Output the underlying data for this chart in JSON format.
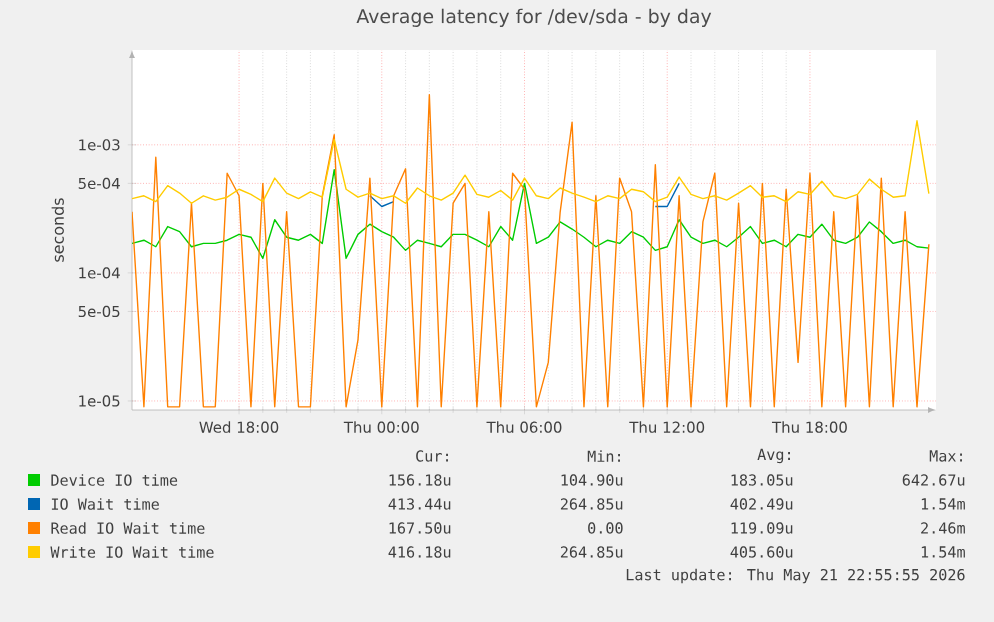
{
  "chart_data": {
    "type": "line",
    "title": "Average latency for /dev/sda - by day",
    "ylabel": "seconds",
    "log": "y",
    "grid": true,
    "legend": "bottom",
    "xlim": [
      "2026-05-20T13:30",
      "2026-05-21T23:18"
    ],
    "ylim": [
      8.5e-06,
      0.0055
    ],
    "xticks": [
      {
        "value": "2026-05-20T18:00",
        "label": "Wed 18:00"
      },
      {
        "value": "2026-05-21T00:00",
        "label": "Thu 00:00"
      },
      {
        "value": "2026-05-21T06:00",
        "label": "Thu 06:00"
      },
      {
        "value": "2026-05-21T12:00",
        "label": "Thu 12:00"
      },
      {
        "value": "2026-05-21T18:00",
        "label": "Thu 18:00"
      }
    ],
    "yticks": [
      {
        "value": 1e-05,
        "label": "1e-05"
      },
      {
        "value": 5e-05,
        "label": "5e-05"
      },
      {
        "value": 0.0001,
        "label": "1e-04"
      },
      {
        "value": 0.0005,
        "label": "5e-04"
      },
      {
        "value": 0.001,
        "label": "1e-03"
      }
    ],
    "x": [
      "2026-05-20T13:30",
      "2026-05-20T14:00",
      "2026-05-20T14:30",
      "2026-05-20T15:00",
      "2026-05-20T15:30",
      "2026-05-20T16:00",
      "2026-05-20T16:30",
      "2026-05-20T17:00",
      "2026-05-20T17:30",
      "2026-05-20T18:00",
      "2026-05-20T18:30",
      "2026-05-20T19:00",
      "2026-05-20T19:30",
      "2026-05-20T20:00",
      "2026-05-20T20:30",
      "2026-05-20T21:00",
      "2026-05-20T21:30",
      "2026-05-20T22:00",
      "2026-05-20T22:30",
      "2026-05-20T23:00",
      "2026-05-20T23:30",
      "2026-05-21T00:00",
      "2026-05-21T00:30",
      "2026-05-21T01:00",
      "2026-05-21T01:30",
      "2026-05-21T02:00",
      "2026-05-21T02:30",
      "2026-05-21T03:00",
      "2026-05-21T03:30",
      "2026-05-21T04:00",
      "2026-05-21T04:30",
      "2026-05-21T05:00",
      "2026-05-21T05:30",
      "2026-05-21T06:00",
      "2026-05-21T06:30",
      "2026-05-21T07:00",
      "2026-05-21T07:30",
      "2026-05-21T08:00",
      "2026-05-21T08:30",
      "2026-05-21T09:00",
      "2026-05-21T09:30",
      "2026-05-21T10:00",
      "2026-05-21T10:30",
      "2026-05-21T11:00",
      "2026-05-21T11:30",
      "2026-05-21T12:00",
      "2026-05-21T12:30",
      "2026-05-21T13:00",
      "2026-05-21T13:30",
      "2026-05-21T14:00",
      "2026-05-21T14:30",
      "2026-05-21T15:00",
      "2026-05-21T15:30",
      "2026-05-21T16:00",
      "2026-05-21T16:30",
      "2026-05-21T17:00",
      "2026-05-21T17:30",
      "2026-05-21T18:00",
      "2026-05-21T18:30",
      "2026-05-21T19:00",
      "2026-05-21T19:30",
      "2026-05-21T20:00",
      "2026-05-21T20:30",
      "2026-05-21T21:00",
      "2026-05-21T21:30",
      "2026-05-21T22:00",
      "2026-05-21T22:30",
      "2026-05-21T23:00"
    ],
    "series": [
      {
        "name": "Device IO time",
        "color": "#00cc00",
        "values": [
          0.00017,
          0.00018,
          0.00016,
          0.00023,
          0.00021,
          0.00016,
          0.00017,
          0.00017,
          0.00018,
          0.0002,
          0.00019,
          0.00013,
          0.00026,
          0.00019,
          0.00018,
          0.0002,
          0.00017,
          0.00064,
          0.00013,
          0.0002,
          0.00024,
          0.00021,
          0.00019,
          0.00015,
          0.00018,
          0.00017,
          0.00016,
          0.0002,
          0.0002,
          0.00018,
          0.00016,
          0.00023,
          0.00018,
          0.0005,
          0.00017,
          0.00019,
          0.00025,
          0.00022,
          0.00019,
          0.00016,
          0.00018,
          0.00017,
          0.00021,
          0.00019,
          0.00015,
          0.00016,
          0.00026,
          0.00019,
          0.00017,
          0.00018,
          0.00016,
          0.00019,
          0.00023,
          0.00017,
          0.00018,
          0.00016,
          0.0002,
          0.00019,
          0.00024,
          0.00018,
          0.00017,
          0.00019,
          0.00025,
          0.00021,
          0.00017,
          0.00018,
          0.00016,
          0.000156
        ]
      },
      {
        "name": "IO Wait time",
        "color": "#0066b3",
        "values": [
          null,
          null,
          null,
          null,
          null,
          null,
          null,
          null,
          null,
          null,
          null,
          null,
          null,
          null,
          null,
          null,
          null,
          null,
          null,
          null,
          0.0004,
          0.00033,
          0.00036,
          null,
          null,
          null,
          null,
          null,
          null,
          null,
          null,
          null,
          null,
          null,
          null,
          null,
          null,
          null,
          null,
          null,
          null,
          null,
          null,
          null,
          0.00033,
          0.00033,
          0.0005,
          null,
          null,
          null,
          null,
          null,
          null,
          null,
          null,
          null,
          null,
          null,
          null,
          null,
          null,
          null,
          null,
          null,
          null,
          null,
          null,
          null
        ]
      },
      {
        "name": "Read IO Wait time",
        "color": "#ff8000",
        "values": [
          0.0003,
          9e-06,
          0.0008,
          9e-06,
          9e-06,
          0.00035,
          9e-06,
          9e-06,
          0.0006,
          0.0004,
          9e-06,
          0.0005,
          9e-06,
          0.0003,
          9e-06,
          9e-06,
          0.0004,
          0.0012,
          9e-06,
          3e-05,
          0.00055,
          9e-06,
          0.0004,
          0.00065,
          9e-06,
          0.00246,
          9e-06,
          0.00035,
          0.0005,
          9e-06,
          0.0003,
          9e-06,
          0.0006,
          0.00045,
          9e-06,
          2e-05,
          0.0003,
          0.0015,
          9e-06,
          0.0004,
          9e-06,
          0.00055,
          0.0003,
          9e-06,
          0.0007,
          9e-06,
          0.0004,
          9e-06,
          0.00025,
          0.0006,
          9e-06,
          0.00035,
          9e-06,
          0.0005,
          9e-06,
          0.00045,
          2e-05,
          0.0006,
          9e-06,
          0.0003,
          9e-06,
          0.0004,
          9e-06,
          0.00055,
          9e-06,
          0.0003,
          9e-06,
          0.0001675
        ]
      },
      {
        "name": "Write IO Wait time",
        "color": "#ffcc00",
        "values": [
          0.00038,
          0.0004,
          0.00036,
          0.00048,
          0.00042,
          0.00035,
          0.0004,
          0.00037,
          0.00039,
          0.00045,
          0.00041,
          0.00036,
          0.00055,
          0.00042,
          0.00038,
          0.00043,
          0.00039,
          0.0011,
          0.00045,
          0.00039,
          0.00042,
          0.00038,
          0.0004,
          0.00035,
          0.00046,
          0.0004,
          0.00037,
          0.00042,
          0.00058,
          0.00041,
          0.00039,
          0.00044,
          0.00037,
          0.00055,
          0.0004,
          0.00038,
          0.00046,
          0.00042,
          0.00039,
          0.00036,
          0.0004,
          0.00038,
          0.00045,
          0.00043,
          0.00036,
          0.00039,
          0.00056,
          0.00041,
          0.00038,
          0.0004,
          0.00037,
          0.00042,
          0.00048,
          0.00039,
          0.0004,
          0.00036,
          0.00043,
          0.00041,
          0.00052,
          0.0004,
          0.00038,
          0.00041,
          0.00054,
          0.00045,
          0.00039,
          0.0004,
          0.00154,
          0.000416
        ]
      }
    ],
    "annotations": [
      "Cur:",
      "Min:",
      "Avg:",
      "Max:",
      "156.18u",
      "104.90u",
      "183.05u",
      "642.67u",
      "413.44u",
      "264.85u",
      "402.49u",
      "1.54m",
      "167.50u",
      "0.00",
      "119.09u",
      "2.46m",
      "416.18u",
      "264.85u",
      "405.60u",
      "1.54m",
      "Last update: Thu May 21 22:55:55 2026"
    ]
  }
}
